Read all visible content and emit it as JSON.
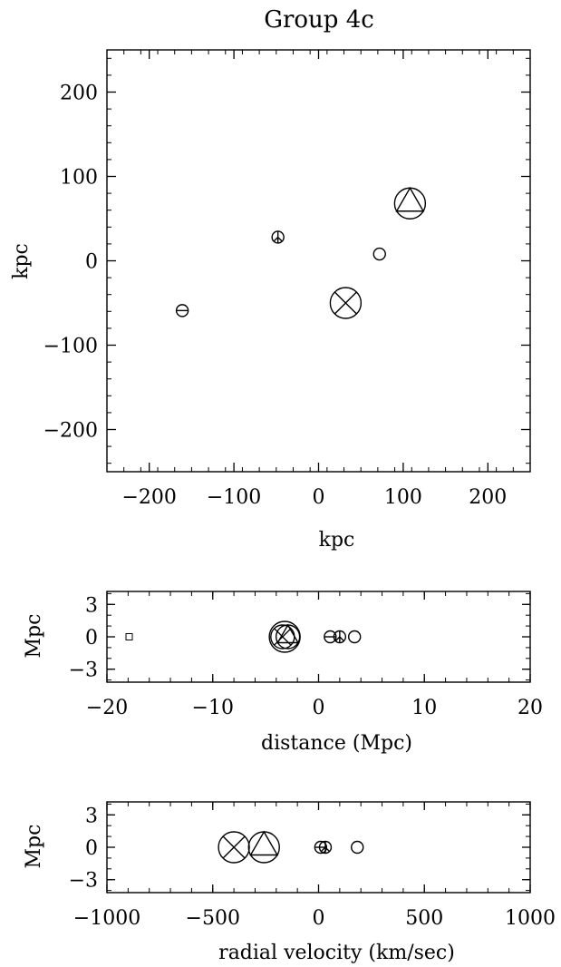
{
  "title": "Group 4c",
  "chart_data": [
    {
      "type": "scatter",
      "panel": "sky",
      "xlabel": "kpc",
      "ylabel": "kpc",
      "xlim": [
        -250,
        250
      ],
      "ylim": [
        -250,
        250
      ],
      "xticks": [
        -200,
        -100,
        0,
        100,
        200
      ],
      "yticks": [
        -200,
        -100,
        0,
        100,
        200
      ],
      "xtick_labels": [
        "−200",
        "−100",
        "0",
        "100",
        "200"
      ],
      "ytick_labels": [
        "−200",
        "−100",
        "0",
        "100",
        "200"
      ],
      "points": [
        {
          "x": -161,
          "y": -59,
          "size": "small",
          "marker": "circle-bar"
        },
        {
          "x": -48,
          "y": 28,
          "size": "small",
          "marker": "circle-peace"
        },
        {
          "x": 72,
          "y": 8,
          "size": "small",
          "marker": "circle"
        },
        {
          "x": 32,
          "y": -50,
          "size": "large",
          "marker": "circle-x"
        },
        {
          "x": 108,
          "y": 68,
          "size": "large",
          "marker": "circle-triangle"
        }
      ]
    },
    {
      "type": "scatter",
      "panel": "distance",
      "xlabel": "distance (Mpc)",
      "ylabel": "Mpc",
      "xlim": [
        -20,
        20
      ],
      "ylim": [
        -4.2,
        4.2
      ],
      "xticks": [
        -20,
        -10,
        0,
        10,
        20
      ],
      "yticks": [
        -3,
        0,
        3
      ],
      "xtick_labels": [
        "−20",
        "−10",
        "0",
        "10",
        "20"
      ],
      "ytick_labels": [
        "−3",
        "0",
        "3"
      ],
      "points": [
        {
          "x": -17.9,
          "y": 0,
          "size": "tiny",
          "marker": "square"
        },
        {
          "x": -3.2,
          "y": 0,
          "size": "large",
          "marker": "circle"
        },
        {
          "x": -3.4,
          "y": 0,
          "size": "medium",
          "marker": "circle-x"
        },
        {
          "x": -2.9,
          "y": 0,
          "size": "medium",
          "marker": "circle-triangle"
        },
        {
          "x": 1.1,
          "y": 0,
          "size": "small",
          "marker": "circle-bar"
        },
        {
          "x": 2.0,
          "y": 0,
          "size": "small",
          "marker": "circle-peace"
        },
        {
          "x": 3.4,
          "y": 0,
          "size": "small",
          "marker": "circle"
        }
      ]
    },
    {
      "type": "scatter",
      "panel": "velocity",
      "xlabel": "radial velocity (km/sec)",
      "ylabel": "Mpc",
      "xlim": [
        -1000,
        1000
      ],
      "ylim": [
        -4.2,
        4.2
      ],
      "xticks": [
        -1000,
        -500,
        0,
        500,
        1000
      ],
      "yticks": [
        -3,
        0,
        3
      ],
      "xtick_labels": [
        "−1000",
        "−500",
        "0",
        "500",
        "1000"
      ],
      "ytick_labels": [
        "−3",
        "0",
        "3"
      ],
      "points": [
        {
          "x": -400,
          "y": 0,
          "size": "large",
          "marker": "circle-x"
        },
        {
          "x": -258,
          "y": 0,
          "size": "large",
          "marker": "circle-triangle"
        },
        {
          "x": 10,
          "y": 0,
          "size": "small",
          "marker": "circle-bar"
        },
        {
          "x": 32,
          "y": 0,
          "size": "small",
          "marker": "circle-peace"
        },
        {
          "x": 183,
          "y": 0,
          "size": "small",
          "marker": "circle"
        }
      ]
    }
  ]
}
